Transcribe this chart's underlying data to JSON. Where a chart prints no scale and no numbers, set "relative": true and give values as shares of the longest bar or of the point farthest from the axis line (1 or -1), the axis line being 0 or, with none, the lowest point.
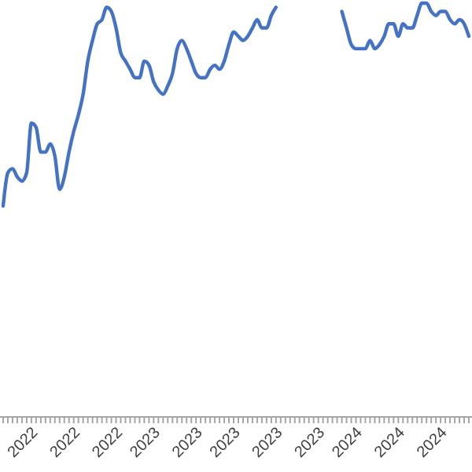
{
  "chart_data": {
    "type": "line",
    "relative": true,
    "categories": [
      null,
      null,
      null,
      null,
      "2022",
      null,
      null,
      null,
      null,
      null,
      null,
      null,
      null,
      "2022",
      null,
      null,
      null,
      null,
      null,
      null,
      null,
      null,
      "2022",
      null,
      null,
      null,
      null,
      null,
      null,
      null,
      "2023",
      null,
      null,
      null,
      null,
      null,
      null,
      null,
      null,
      "2023",
      null,
      null,
      null,
      null,
      null,
      null,
      null,
      "2023",
      null,
      null,
      null,
      null,
      null,
      null,
      null,
      null,
      "2023",
      null,
      null,
      null,
      null,
      null,
      null,
      null,
      null,
      "2023",
      null,
      null,
      null,
      null,
      null,
      null,
      null,
      "2024",
      null,
      null,
      null,
      null,
      null,
      null,
      null,
      null,
      "2024",
      null,
      null,
      null,
      null,
      null,
      null,
      null,
      null,
      "2024",
      null,
      null,
      null,
      null,
      null,
      null,
      null,
      null
    ],
    "series": [
      {
        "color": "#4472c4",
        "values": [
          0.51,
          0.59,
          0.6,
          0.58,
          0.57,
          0.59,
          0.71,
          0.7,
          0.64,
          0.64,
          0.66,
          0.63,
          0.55,
          0.58,
          0.64,
          0.69,
          0.73,
          0.78,
          0.86,
          0.91,
          0.95,
          0.96,
          0.99,
          0.98,
          0.94,
          0.88,
          0.86,
          0.84,
          0.82,
          0.82,
          0.86,
          0.85,
          0.81,
          0.79,
          0.78,
          0.8,
          0.83,
          0.89,
          0.91,
          0.89,
          0.86,
          0.83,
          0.82,
          0.82,
          0.84,
          0.85,
          0.84,
          0.86,
          0.9,
          0.93,
          0.92,
          0.91,
          0.92,
          0.94,
          0.96,
          0.94,
          0.94,
          0.97,
          0.99,
          null,
          null,
          null,
          null,
          null,
          null,
          null,
          null,
          null,
          null,
          null,
          null,
          null,
          null,
          null,
          null,
          null,
          null,
          null,
          null,
          null,
          null,
          null,
          null,
          null,
          null,
          null,
          null,
          null,
          null,
          null,
          null,
          null,
          null,
          null,
          null,
          null,
          null,
          null,
          null,
          null
        ]
      },
      {
        "color": "#4472c4",
        "values": [
          null,
          null,
          null,
          null,
          null,
          null,
          null,
          null,
          null,
          null,
          null,
          null,
          null,
          null,
          null,
          null,
          null,
          null,
          null,
          null,
          null,
          null,
          null,
          null,
          null,
          null,
          null,
          null,
          null,
          null,
          null,
          null,
          null,
          null,
          null,
          null,
          null,
          null,
          null,
          null,
          null,
          null,
          null,
          null,
          null,
          null,
          null,
          null,
          null,
          null,
          null,
          null,
          null,
          null,
          null,
          null,
          null,
          null,
          null,
          null,
          null,
          null,
          null,
          null,
          null,
          null,
          null,
          null,
          null,
          null,
          null,
          null,
          0.98,
          0.94,
          0.9,
          0.89,
          0.89,
          0.89,
          0.91,
          0.89,
          0.9,
          0.92,
          0.95,
          0.95,
          0.92,
          0.95,
          0.94,
          0.94,
          0.97,
          1,
          1,
          0.98,
          0.97,
          0.98,
          0.98,
          0.96,
          0.95,
          0.96,
          0.95,
          0.92
        ]
      }
    ],
    "line_style": "solid"
  }
}
